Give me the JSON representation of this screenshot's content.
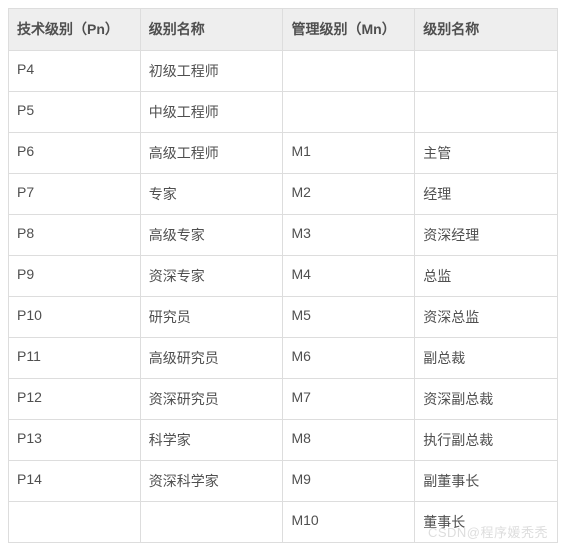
{
  "table": {
    "columns": [
      "技术级别（Pn）",
      "级别名称",
      "管理级别（Mn）",
      "级别名称"
    ],
    "rows": [
      [
        "P4",
        "初级工程师",
        "",
        ""
      ],
      [
        "P5",
        "中级工程师",
        "",
        ""
      ],
      [
        "P6",
        "高级工程师",
        "M1",
        "主管"
      ],
      [
        "P7",
        "专家",
        "M2",
        "经理"
      ],
      [
        "P8",
        "高级专家",
        "M3",
        "资深经理"
      ],
      [
        "P9",
        "资深专家",
        "M4",
        "总监"
      ],
      [
        "P10",
        "研究员",
        "M5",
        "资深总监"
      ],
      [
        "P11",
        "高级研究员",
        "M6",
        "副总裁"
      ],
      [
        "P12",
        "资深研究员",
        "M7",
        "资深副总裁"
      ],
      [
        "P13",
        "科学家",
        "M8",
        "执行副总裁"
      ],
      [
        "P14",
        "资深科学家",
        "M9",
        "副董事长"
      ],
      [
        "",
        "",
        "M10",
        "董事长"
      ]
    ],
    "header_bg": "#eeeeee",
    "border_color": "#dddddd",
    "text_color": "#4f4f4f",
    "font_size": 14
  },
  "watermark": "CSDN@程序媛秃秃"
}
